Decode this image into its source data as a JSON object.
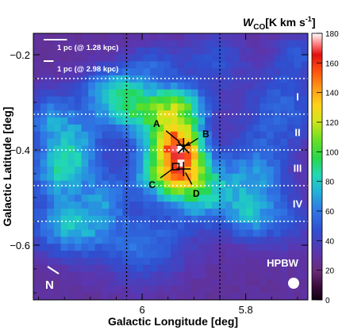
{
  "chart_data": {
    "type": "heatmap",
    "xlabel": "Galactic Longitude [deg]",
    "ylabel": "Galactic Latitude [deg]",
    "xlim": [
      6.21,
      5.68
    ],
    "ylim": [
      -0.715,
      -0.155
    ],
    "x_reversed": true,
    "x_ticks": [
      {
        "value": 6.0,
        "label": "6"
      },
      {
        "value": 5.8,
        "label": "5.8"
      }
    ],
    "y_ticks": [
      {
        "value": -0.2,
        "label": "−0.2"
      },
      {
        "value": -0.4,
        "label": "−0.4"
      },
      {
        "value": -0.6,
        "label": "−0.6"
      }
    ],
    "colorbar": {
      "label_main": "W",
      "label_sub": "CO",
      "label_unit": "[K km s",
      "label_exp": "-1",
      "label_close": "]",
      "range": [
        0,
        180
      ],
      "ticks": [
        {
          "value": 0,
          "label": "0"
        },
        {
          "value": 20,
          "label": "20"
        },
        {
          "value": 40,
          "label": "40"
        },
        {
          "value": 60,
          "label": "60"
        },
        {
          "value": 80,
          "label": "80"
        },
        {
          "value": 100,
          "label": "100"
        },
        {
          "value": 120,
          "label": "120"
        },
        {
          "value": 140,
          "label": "140"
        },
        {
          "value": 160,
          "label": "160"
        },
        {
          "value": 180,
          "label": "180"
        }
      ],
      "colormap": [
        [
          0.0,
          "#100010"
        ],
        [
          0.05,
          "#3a0a3a"
        ],
        [
          0.11,
          "#6a2c7a"
        ],
        [
          0.18,
          "#5a36b0"
        ],
        [
          0.26,
          "#2f4fd0"
        ],
        [
          0.34,
          "#2f7ae6"
        ],
        [
          0.41,
          "#21b5d6"
        ],
        [
          0.47,
          "#22d8b4"
        ],
        [
          0.53,
          "#27d84c"
        ],
        [
          0.6,
          "#6ae022"
        ],
        [
          0.67,
          "#d2e61a"
        ],
        [
          0.73,
          "#ffd21a"
        ],
        [
          0.79,
          "#ff9e16"
        ],
        [
          0.86,
          "#ff5010"
        ],
        [
          0.92,
          "#e0100e"
        ],
        [
          0.96,
          "#ff8080"
        ],
        [
          1.0,
          "#ffffff"
        ]
      ]
    },
    "vertical_dotted_lines": [
      6.03,
      5.85
    ],
    "horizontal_dotted_lines": [
      -0.25,
      -0.325,
      -0.4,
      -0.475,
      -0.55
    ],
    "strip_labels": [
      {
        "label": "I",
        "lat": -0.2875
      },
      {
        "label": "II",
        "lat": -0.3625
      },
      {
        "label": "III",
        "lat": -0.4375
      },
      {
        "label": "IV",
        "lat": -0.5125
      }
    ],
    "scale_bars": [
      {
        "label": "1 pc (@ 1.28 kpc)",
        "length_deg": 0.045,
        "lat": -0.185
      },
      {
        "label": "1 pc (@ 2.98 kpc)",
        "length_deg": 0.019,
        "lat": -0.23
      }
    ],
    "markers": [
      {
        "label": "A",
        "symbol": "plus",
        "l": 5.92,
        "b": -0.39
      },
      {
        "label": "B",
        "symbol": "cross",
        "l": 5.92,
        "b": -0.395
      },
      {
        "label": "C",
        "symbol": "square",
        "l": 5.935,
        "b": -0.435
      },
      {
        "label": "D",
        "symbol": "plus",
        "l": 5.92,
        "b": -0.44
      }
    ],
    "compass_label": "N",
    "beam_label": "HPBW",
    "emission_components": [
      {
        "l": 5.925,
        "b": -0.395,
        "sl": 0.03,
        "sb": 0.038,
        "amp": 90
      },
      {
        "l": 5.955,
        "b": -0.385,
        "sl": 0.045,
        "sb": 0.06,
        "amp": 40
      },
      {
        "l": 6.0,
        "b": -0.315,
        "sl": 0.06,
        "sb": 0.035,
        "amp": 55
      },
      {
        "l": 5.92,
        "b": -0.305,
        "sl": 0.035,
        "sb": 0.03,
        "amp": 35
      },
      {
        "l": 5.94,
        "b": -0.455,
        "sl": 0.05,
        "sb": 0.035,
        "amp": 60
      },
      {
        "l": 5.88,
        "b": -0.495,
        "sl": 0.045,
        "sb": 0.045,
        "amp": 45
      },
      {
        "l": 5.78,
        "b": -0.46,
        "sl": 0.04,
        "sb": 0.06,
        "amp": 38
      },
      {
        "l": 5.8,
        "b": -0.545,
        "sl": 0.025,
        "sb": 0.03,
        "amp": 25
      },
      {
        "l": 6.06,
        "b": -0.27,
        "sl": 0.04,
        "sb": 0.03,
        "amp": 40
      },
      {
        "l": 6.13,
        "b": -0.39,
        "sl": 0.04,
        "sb": 0.05,
        "amp": 38
      },
      {
        "l": 6.16,
        "b": -0.45,
        "sl": 0.04,
        "sb": 0.04,
        "amp": 40
      },
      {
        "l": 6.14,
        "b": -0.56,
        "sl": 0.05,
        "sb": 0.04,
        "amp": 48
      },
      {
        "l": 6.18,
        "b": -0.33,
        "sl": 0.03,
        "sb": 0.04,
        "amp": 30
      },
      {
        "l": 6.07,
        "b": -0.5,
        "sl": 0.03,
        "sb": 0.035,
        "amp": 28
      },
      {
        "l": 6.0,
        "b": -0.6,
        "sl": 0.06,
        "sb": 0.05,
        "amp": 30
      },
      {
        "l": 5.98,
        "b": -0.22,
        "sl": 0.04,
        "sb": 0.03,
        "amp": 22
      },
      {
        "l": 5.86,
        "b": -0.21,
        "sl": 0.04,
        "sb": 0.04,
        "amp": 20
      },
      {
        "l": 5.73,
        "b": -0.31,
        "sl": 0.05,
        "sb": 0.06,
        "amp": 26
      },
      {
        "l": 5.7,
        "b": -0.2,
        "sl": 0.03,
        "sb": 0.03,
        "amp": 18
      },
      {
        "l": 5.73,
        "b": -0.55,
        "sl": 0.04,
        "sb": 0.04,
        "amp": 20
      }
    ],
    "emission_base": 28,
    "grid": false
  }
}
